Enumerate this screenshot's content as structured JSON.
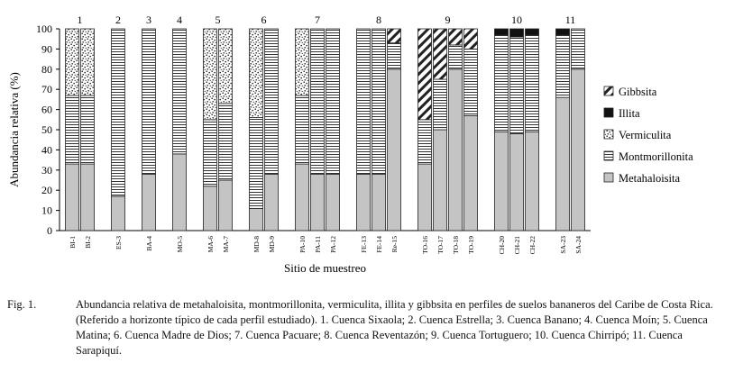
{
  "chart_data": {
    "type": "bar",
    "stacked": true,
    "ylabel": "Abundancia relativa (%)",
    "xlabel": "Sitio de muestreo",
    "ylim": [
      0,
      100
    ],
    "yticks": [
      0,
      10,
      20,
      30,
      40,
      50,
      60,
      70,
      80,
      90,
      100
    ],
    "legend_position": "right",
    "series": [
      {
        "name": "Gibbsita",
        "key": "gib"
      },
      {
        "name": "Illita",
        "key": "ill"
      },
      {
        "name": "Vermiculita",
        "key": "ver"
      },
      {
        "name": "Montmorillonita",
        "key": "mon"
      },
      {
        "name": "Metahaloisita",
        "key": "met"
      }
    ],
    "groups": [
      {
        "label": "1",
        "bars": [
          {
            "label": "BI-1",
            "met": 33,
            "mon": 34,
            "ver": 33,
            "ill": 0,
            "gib": 0
          },
          {
            "label": "BI-2",
            "met": 33,
            "mon": 34,
            "ver": 33,
            "ill": 0,
            "gib": 0
          }
        ]
      },
      {
        "label": "2",
        "bars": [
          {
            "label": "ES-3",
            "met": 17,
            "mon": 83,
            "ver": 0,
            "ill": 0,
            "gib": 0
          }
        ]
      },
      {
        "label": "3",
        "bars": [
          {
            "label": "BA-4",
            "met": 28,
            "mon": 72,
            "ver": 0,
            "ill": 0,
            "gib": 0
          }
        ]
      },
      {
        "label": "4",
        "bars": [
          {
            "label": "MO-5",
            "met": 38,
            "mon": 62,
            "ver": 0,
            "ill": 0,
            "gib": 0
          }
        ]
      },
      {
        "label": "5",
        "bars": [
          {
            "label": "MA-6",
            "met": 22,
            "mon": 33,
            "ver": 45,
            "ill": 0,
            "gib": 0
          },
          {
            "label": "MA-7",
            "met": 25,
            "mon": 38,
            "ver": 37,
            "ill": 0,
            "gib": 0
          }
        ]
      },
      {
        "label": "6",
        "bars": [
          {
            "label": "MD-8",
            "met": 11,
            "mon": 45,
            "ver": 44,
            "ill": 0,
            "gib": 0
          },
          {
            "label": "MD-9",
            "met": 28,
            "mon": 72,
            "ver": 0,
            "ill": 0,
            "gib": 0
          }
        ]
      },
      {
        "label": "7",
        "bars": [
          {
            "label": "PA-10",
            "met": 33,
            "mon": 34,
            "ver": 33,
            "ill": 0,
            "gib": 0
          },
          {
            "label": "PA-11",
            "met": 28,
            "mon": 72,
            "ver": 0,
            "ill": 0,
            "gib": 0
          },
          {
            "label": "PA-12",
            "met": 28,
            "mon": 72,
            "ver": 0,
            "ill": 0,
            "gib": 0
          }
        ]
      },
      {
        "label": "8",
        "bars": [
          {
            "label": "FE-13",
            "met": 28,
            "mon": 72,
            "ver": 0,
            "ill": 0,
            "gib": 0
          },
          {
            "label": "FE-14",
            "met": 28,
            "mon": 72,
            "ver": 0,
            "ill": 0,
            "gib": 0
          },
          {
            "label": "Re-15",
            "met": 80,
            "mon": 13,
            "ver": 0,
            "ill": 0,
            "gib": 7
          }
        ]
      },
      {
        "label": "9",
        "bars": [
          {
            "label": "TO-16",
            "met": 33,
            "mon": 22,
            "ver": 0,
            "ill": 0,
            "gib": 45
          },
          {
            "label": "TO-17",
            "met": 50,
            "mon": 25,
            "ver": 0,
            "ill": 0,
            "gib": 25
          },
          {
            "label": "TO-18",
            "met": 80,
            "mon": 12,
            "ver": 0,
            "ill": 0,
            "gib": 8
          },
          {
            "label": "TO-19",
            "met": 57,
            "mon": 33,
            "ver": 0,
            "ill": 0,
            "gib": 10
          }
        ]
      },
      {
        "label": "10",
        "bars": [
          {
            "label": "CH-20",
            "met": 49,
            "mon": 48,
            "ver": 0,
            "ill": 3,
            "gib": 0
          },
          {
            "label": "CH-21",
            "met": 48,
            "mon": 48,
            "ver": 0,
            "ill": 4,
            "gib": 0
          },
          {
            "label": "CH-22",
            "met": 49,
            "mon": 48,
            "ver": 0,
            "ill": 3,
            "gib": 0
          }
        ]
      },
      {
        "label": "11",
        "bars": [
          {
            "label": "SA-23",
            "met": 66,
            "mon": 31,
            "ver": 0,
            "ill": 3,
            "gib": 0
          },
          {
            "label": "SA-24",
            "met": 80,
            "mon": 20,
            "ver": 0,
            "ill": 0,
            "gib": 0
          }
        ]
      }
    ]
  },
  "caption": {
    "label": "Fig. 1.",
    "text": "Abundancia relativa de metahaloisita, montmorillonita, vermiculita, illita y gibbsita  en perfiles de suelos bananeros del Caribe de Costa Rica. (Referido a horizonte típico de cada perfil estudiado). 1. Cuenca Sixaola; 2. Cuenca Estrella; 3. Cuenca Banano; 4. Cuenca Moín; 5. Cuenca Matina; 6. Cuenca Madre de Dios; 7. Cuenca Pacuare; 8. Cuenca Reventazón; 9. Cuenca Tortuguero; 10. Cuenca Chirripó; 11. Cuenca Sarapiquí."
  }
}
